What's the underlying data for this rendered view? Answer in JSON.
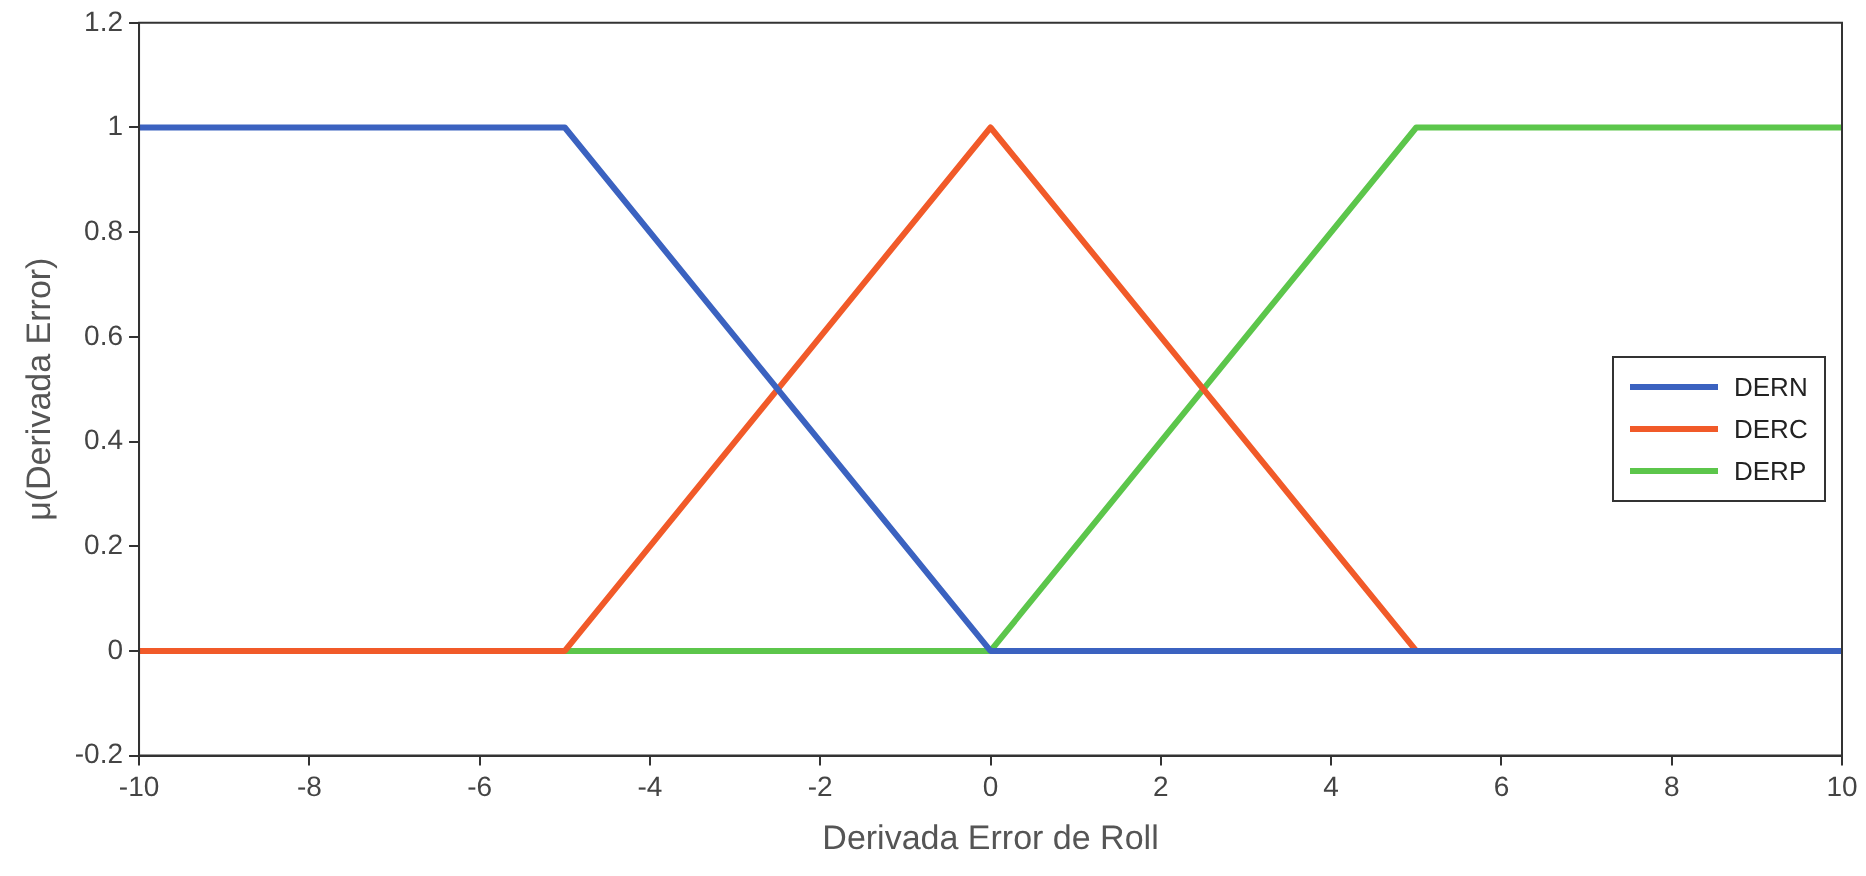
{
  "chart_data": {
    "type": "line",
    "xlabel": "Derivada Error de Roll",
    "ylabel": "μ(Derivada Error)",
    "xlim": [
      -10,
      10
    ],
    "xticks": [
      -10,
      -8,
      -6,
      -4,
      -2,
      0,
      2,
      4,
      6,
      8,
      10
    ],
    "ylim": [
      -0.2,
      1.2
    ],
    "yticks": [
      -0.2,
      0,
      0.2,
      0.4,
      0.6,
      0.8,
      1,
      1.2
    ],
    "grid": false,
    "legend": "right",
    "marker": "none",
    "line_style": "solid",
    "series": [
      {
        "name": "DERN",
        "color": "#3b62c0",
        "x": [
          -10,
          -5,
          0,
          10
        ],
        "values": [
          1,
          1,
          0,
          0
        ]
      },
      {
        "name": "DERC",
        "color": "#f15a29",
        "x": [
          -10,
          -5,
          0,
          5,
          10
        ],
        "values": [
          0,
          0,
          1,
          0,
          0
        ]
      },
      {
        "name": "DERP",
        "color": "#5cc64b",
        "x": [
          -10,
          0,
          5,
          10
        ],
        "values": [
          0,
          0,
          1,
          1
        ]
      }
    ]
  }
}
